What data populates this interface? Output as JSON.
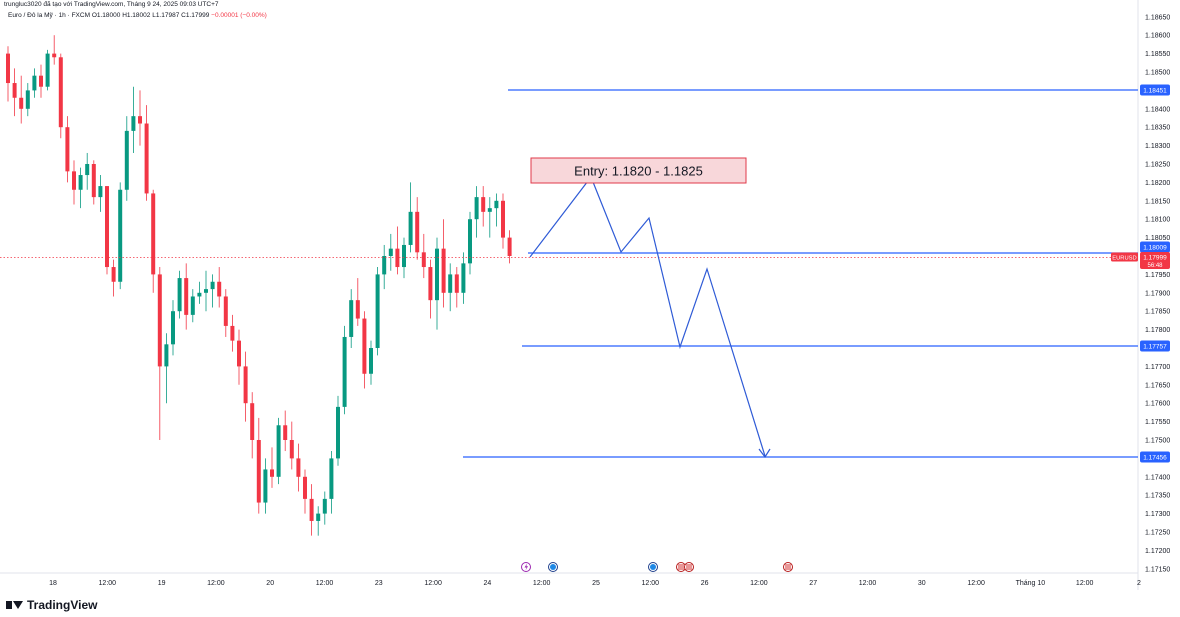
{
  "header": {
    "publisher_line": "trungluc3020 đã tạo với TradingView.com, Tháng 9 24, 2025 09:03 UTC+7",
    "symbol_line": "Euro / Đô la Mỹ · 1h · FXCM",
    "ohlc": {
      "open": "O1.18000",
      "high": "H1.18002",
      "low": "L1.17987",
      "close": "C1.17999",
      "change": "−0.00001 (−0.00%)"
    }
  },
  "brand": {
    "name": "TradingView",
    "icon": "tradingview-logo-icon"
  },
  "colors": {
    "bull": "#089981",
    "bear": "#f23645",
    "line": "#2962ff",
    "path": "#2f5bd6",
    "entry_fill": "#f8d7da",
    "entry_border": "#e03a4a"
  },
  "chart_data": {
    "type": "candlestick",
    "symbol": "EURUSD",
    "interval": "1h",
    "ylim": [
      1.1714,
      1.1868
    ],
    "y_ticks": [
      "1.18650",
      "1.18600",
      "1.18550",
      "1.18500",
      "1.18400",
      "1.18350",
      "1.18300",
      "1.18250",
      "1.18200",
      "1.18150",
      "1.18100",
      "1.18050",
      "1.17950",
      "1.17900",
      "1.17850",
      "1.17800",
      "1.17700",
      "1.17650",
      "1.17600",
      "1.17550",
      "1.17500",
      "1.17400",
      "1.17350",
      "1.17300",
      "1.17250",
      "1.17200",
      "1.17150"
    ],
    "x_labels": [
      "18",
      "12:00",
      "19",
      "12:00",
      "20",
      "12:00",
      "23",
      "12:00",
      "24",
      "12:00",
      "25",
      "12:00",
      "26",
      "12:00",
      "27",
      "12:00",
      "30",
      "12:00",
      "Tháng 10",
      "12:00",
      "2"
    ],
    "price_lines": [
      {
        "label": "1.18451",
        "value": 1.18451,
        "type": "level"
      },
      {
        "label": "1.18009",
        "value": 1.18009,
        "type": "level"
      },
      {
        "label": "1.17757",
        "value": 1.17757,
        "type": "level"
      },
      {
        "label": "1.17456",
        "value": 1.17456,
        "type": "level"
      }
    ],
    "current_price": {
      "symbol": "EURUSD",
      "price": "1.17999",
      "countdown": "56:48",
      "value": 1.17999
    },
    "entry_annotation": "Entry: 1.1820 - 1.1825",
    "projection_path": [
      1.18,
      1.1821,
      1.1801,
      1.1811,
      1.1776,
      1.1797,
      1.1746
    ],
    "candles": [
      [
        1.1855,
        1.1857,
        1.1842,
        1.1847
      ],
      [
        1.1847,
        1.1851,
        1.1838,
        1.1843
      ],
      [
        1.1843,
        1.1849,
        1.1836,
        1.184
      ],
      [
        1.184,
        1.1847,
        1.1838,
        1.1845
      ],
      [
        1.1845,
        1.1851,
        1.1843,
        1.1849
      ],
      [
        1.1849,
        1.1852,
        1.1843,
        1.1846
      ],
      [
        1.1846,
        1.1856,
        1.1845,
        1.1855
      ],
      [
        1.1855,
        1.186,
        1.1852,
        1.1854
      ],
      [
        1.1854,
        1.1855,
        1.1832,
        1.1835
      ],
      [
        1.1835,
        1.1838,
        1.182,
        1.1823
      ],
      [
        1.1823,
        1.1826,
        1.1814,
        1.1818
      ],
      [
        1.1818,
        1.1824,
        1.1813,
        1.1822
      ],
      [
        1.1822,
        1.1828,
        1.1818,
        1.1825
      ],
      [
        1.1825,
        1.1826,
        1.1814,
        1.1816
      ],
      [
        1.1816,
        1.1822,
        1.1812,
        1.1819
      ],
      [
        1.1819,
        1.1819,
        1.1795,
        1.1797
      ],
      [
        1.1797,
        1.1799,
        1.1789,
        1.1793
      ],
      [
        1.1793,
        1.182,
        1.1791,
        1.1818
      ],
      [
        1.1818,
        1.1838,
        1.1815,
        1.1834
      ],
      [
        1.1834,
        1.1846,
        1.1828,
        1.1838
      ],
      [
        1.1838,
        1.1845,
        1.183,
        1.1836
      ],
      [
        1.1836,
        1.1841,
        1.1815,
        1.1817
      ],
      [
        1.1817,
        1.1818,
        1.179,
        1.1795
      ],
      [
        1.1795,
        1.1797,
        1.175,
        1.177
      ],
      [
        1.177,
        1.1779,
        1.176,
        1.1776
      ],
      [
        1.1776,
        1.1788,
        1.1773,
        1.1785
      ],
      [
        1.1785,
        1.1796,
        1.1783,
        1.1794
      ],
      [
        1.1794,
        1.1798,
        1.178,
        1.1784
      ],
      [
        1.1784,
        1.1791,
        1.1782,
        1.1789
      ],
      [
        1.1789,
        1.1793,
        1.1787,
        1.179
      ],
      [
        1.179,
        1.1796,
        1.1785,
        1.1791
      ],
      [
        1.1791,
        1.1795,
        1.1786,
        1.1793
      ],
      [
        1.1793,
        1.1797,
        1.1786,
        1.1789
      ],
      [
        1.1789,
        1.1791,
        1.1778,
        1.1781
      ],
      [
        1.1781,
        1.1784,
        1.1774,
        1.1777
      ],
      [
        1.1777,
        1.178,
        1.1765,
        1.177
      ],
      [
        1.177,
        1.1774,
        1.1755,
        1.176
      ],
      [
        1.176,
        1.1763,
        1.1745,
        1.175
      ],
      [
        1.175,
        1.1756,
        1.173,
        1.1733
      ],
      [
        1.1733,
        1.1745,
        1.173,
        1.1742
      ],
      [
        1.1742,
        1.1748,
        1.1737,
        1.174
      ],
      [
        1.174,
        1.1756,
        1.1738,
        1.1754
      ],
      [
        1.1754,
        1.1758,
        1.1747,
        1.175
      ],
      [
        1.175,
        1.1755,
        1.1742,
        1.1745
      ],
      [
        1.1745,
        1.1749,
        1.1736,
        1.174
      ],
      [
        1.174,
        1.1742,
        1.173,
        1.1734
      ],
      [
        1.1734,
        1.1738,
        1.1724,
        1.1728
      ],
      [
        1.1728,
        1.1732,
        1.1724,
        1.173
      ],
      [
        1.173,
        1.1736,
        1.1727,
        1.1734
      ],
      [
        1.1734,
        1.1747,
        1.173,
        1.1745
      ],
      [
        1.1745,
        1.1762,
        1.1743,
        1.1759
      ],
      [
        1.1759,
        1.1781,
        1.1757,
        1.1778
      ],
      [
        1.1778,
        1.1791,
        1.1775,
        1.1788
      ],
      [
        1.1788,
        1.1794,
        1.1781,
        1.1783
      ],
      [
        1.1783,
        1.1785,
        1.1764,
        1.1768
      ],
      [
        1.1768,
        1.1777,
        1.1765,
        1.1775
      ],
      [
        1.1775,
        1.1797,
        1.1773,
        1.1795
      ],
      [
        1.1795,
        1.1803,
        1.1791,
        1.18
      ],
      [
        1.18,
        1.1806,
        1.1796,
        1.1802
      ],
      [
        1.1802,
        1.1808,
        1.1795,
        1.1797
      ],
      [
        1.1797,
        1.1805,
        1.1794,
        1.1803
      ],
      [
        1.1803,
        1.182,
        1.1801,
        1.1812
      ],
      [
        1.1812,
        1.1816,
        1.1799,
        1.1801
      ],
      [
        1.1801,
        1.1806,
        1.1794,
        1.1797
      ],
      [
        1.1797,
        1.1799,
        1.1783,
        1.1788
      ],
      [
        1.1788,
        1.1805,
        1.178,
        1.1802
      ],
      [
        1.1802,
        1.181,
        1.1786,
        1.179
      ],
      [
        1.179,
        1.1798,
        1.1785,
        1.1795
      ],
      [
        1.1795,
        1.1797,
        1.1786,
        1.179
      ],
      [
        1.179,
        1.1801,
        1.1787,
        1.1798
      ],
      [
        1.1798,
        1.1812,
        1.1795,
        1.181
      ],
      [
        1.181,
        1.1819,
        1.1805,
        1.1816
      ],
      [
        1.1816,
        1.1819,
        1.1808,
        1.1812
      ],
      [
        1.1812,
        1.1816,
        1.1805,
        1.1813
      ],
      [
        1.1813,
        1.1817,
        1.1808,
        1.1815
      ],
      [
        1.1815,
        1.1817,
        1.1802,
        1.1805
      ],
      [
        1.1805,
        1.1807,
        1.1798,
        1.18
      ]
    ]
  }
}
